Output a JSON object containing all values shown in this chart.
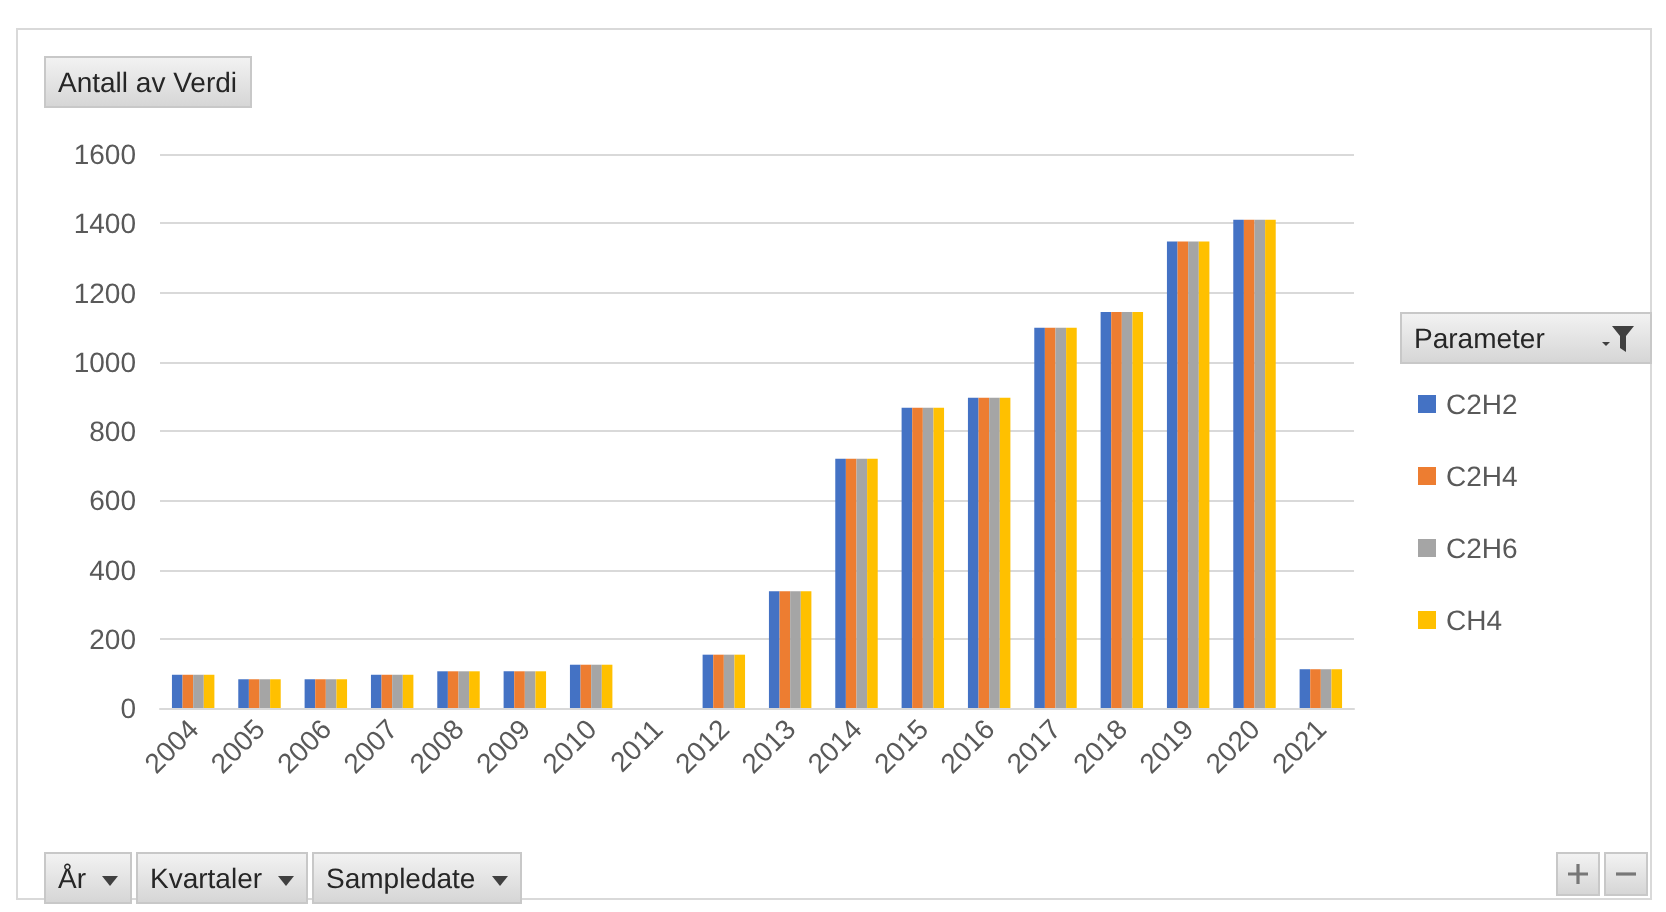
{
  "chart_data": {
    "type": "bar",
    "title": "Antall av Verdi",
    "legend_title": "Parameter",
    "categories": [
      "2004",
      "2005",
      "2006",
      "2007",
      "2008",
      "2009",
      "2010",
      "2011",
      "2012",
      "2013",
      "2014",
      "2015",
      "2016",
      "2017",
      "2018",
      "2019",
      "2020",
      "2021"
    ],
    "series": [
      {
        "name": "C2H2",
        "color": "#4472c4",
        "values": [
          96,
          83,
          83,
          96,
          106,
          106,
          125,
          null,
          154,
          337,
          720,
          867,
          896,
          1098,
          1144,
          1347,
          1410,
          112
        ]
      },
      {
        "name": "C2H4",
        "color": "#ed7d31",
        "values": [
          96,
          83,
          83,
          96,
          106,
          106,
          125,
          null,
          154,
          337,
          720,
          867,
          896,
          1098,
          1144,
          1347,
          1410,
          112
        ]
      },
      {
        "name": "C2H6",
        "color": "#a5a5a5",
        "values": [
          96,
          83,
          83,
          96,
          106,
          106,
          125,
          null,
          154,
          337,
          720,
          867,
          896,
          1098,
          1144,
          1347,
          1410,
          112
        ]
      },
      {
        "name": "CH4",
        "color": "#ffc000",
        "values": [
          96,
          83,
          83,
          96,
          106,
          106,
          125,
          null,
          154,
          337,
          720,
          867,
          896,
          1098,
          1144,
          1347,
          1410,
          112
        ]
      }
    ],
    "annotations": [
      "År",
      "Kvartaler",
      "Sampledate"
    ],
    "ylim": [
      0,
      1600
    ],
    "yticks": [
      0,
      200,
      400,
      600,
      800,
      1000,
      1200,
      1400,
      1600
    ],
    "grid": "y",
    "legend": "right"
  }
}
